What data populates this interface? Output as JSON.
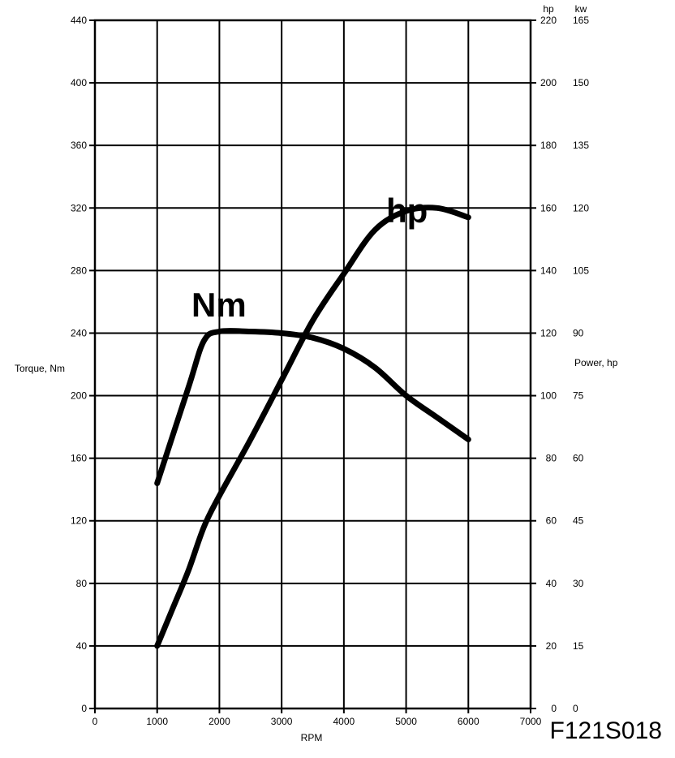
{
  "chart_data": {
    "type": "line",
    "figure_code": "F121S018",
    "xlabel": "RPM",
    "ylabel_left": "Torque, Nm",
    "ylabel_right": "Power, hp",
    "right_unit_hp": "hp",
    "right_unit_kw": "kw",
    "xlim": [
      0,
      7000
    ],
    "ylim_left": [
      0,
      440
    ],
    "ylim_right_hp": [
      0,
      220
    ],
    "x_ticks": [
      "0",
      "1000",
      "2000",
      "3000",
      "4000",
      "5000",
      "6000",
      "7000"
    ],
    "y_ticks_left": [
      "0",
      "40",
      "80",
      "120",
      "160",
      "200",
      "240",
      "280",
      "320",
      "360",
      "400",
      "440"
    ],
    "y_ticks_right_hp": [
      "0",
      "20",
      "40",
      "60",
      "80",
      "100",
      "120",
      "140",
      "160",
      "180",
      "200",
      "220"
    ],
    "y_ticks_right_kw": [
      "0",
      "15",
      "30",
      "45",
      "60",
      "75",
      "90",
      "105",
      "120",
      "135",
      "150",
      "165"
    ],
    "grid": true,
    "series": [
      {
        "name": "Nm",
        "axis": "left",
        "x": [
          1000,
          1500,
          1750,
          2000,
          2500,
          3000,
          3500,
          4000,
          4500,
          5000,
          5500,
          6000
        ],
        "y": [
          144,
          205,
          235,
          241,
          241,
          240,
          237,
          230,
          218,
          200,
          186,
          172
        ]
      },
      {
        "name": "hp",
        "axis": "right",
        "x": [
          1000,
          1250,
          1500,
          1750,
          2000,
          2500,
          3000,
          3500,
          4000,
          4500,
          5000,
          5500,
          6000
        ],
        "y": [
          20,
          32,
          44,
          58,
          68,
          86,
          105,
          124,
          139,
          153,
          159,
          160,
          157
        ]
      }
    ]
  }
}
